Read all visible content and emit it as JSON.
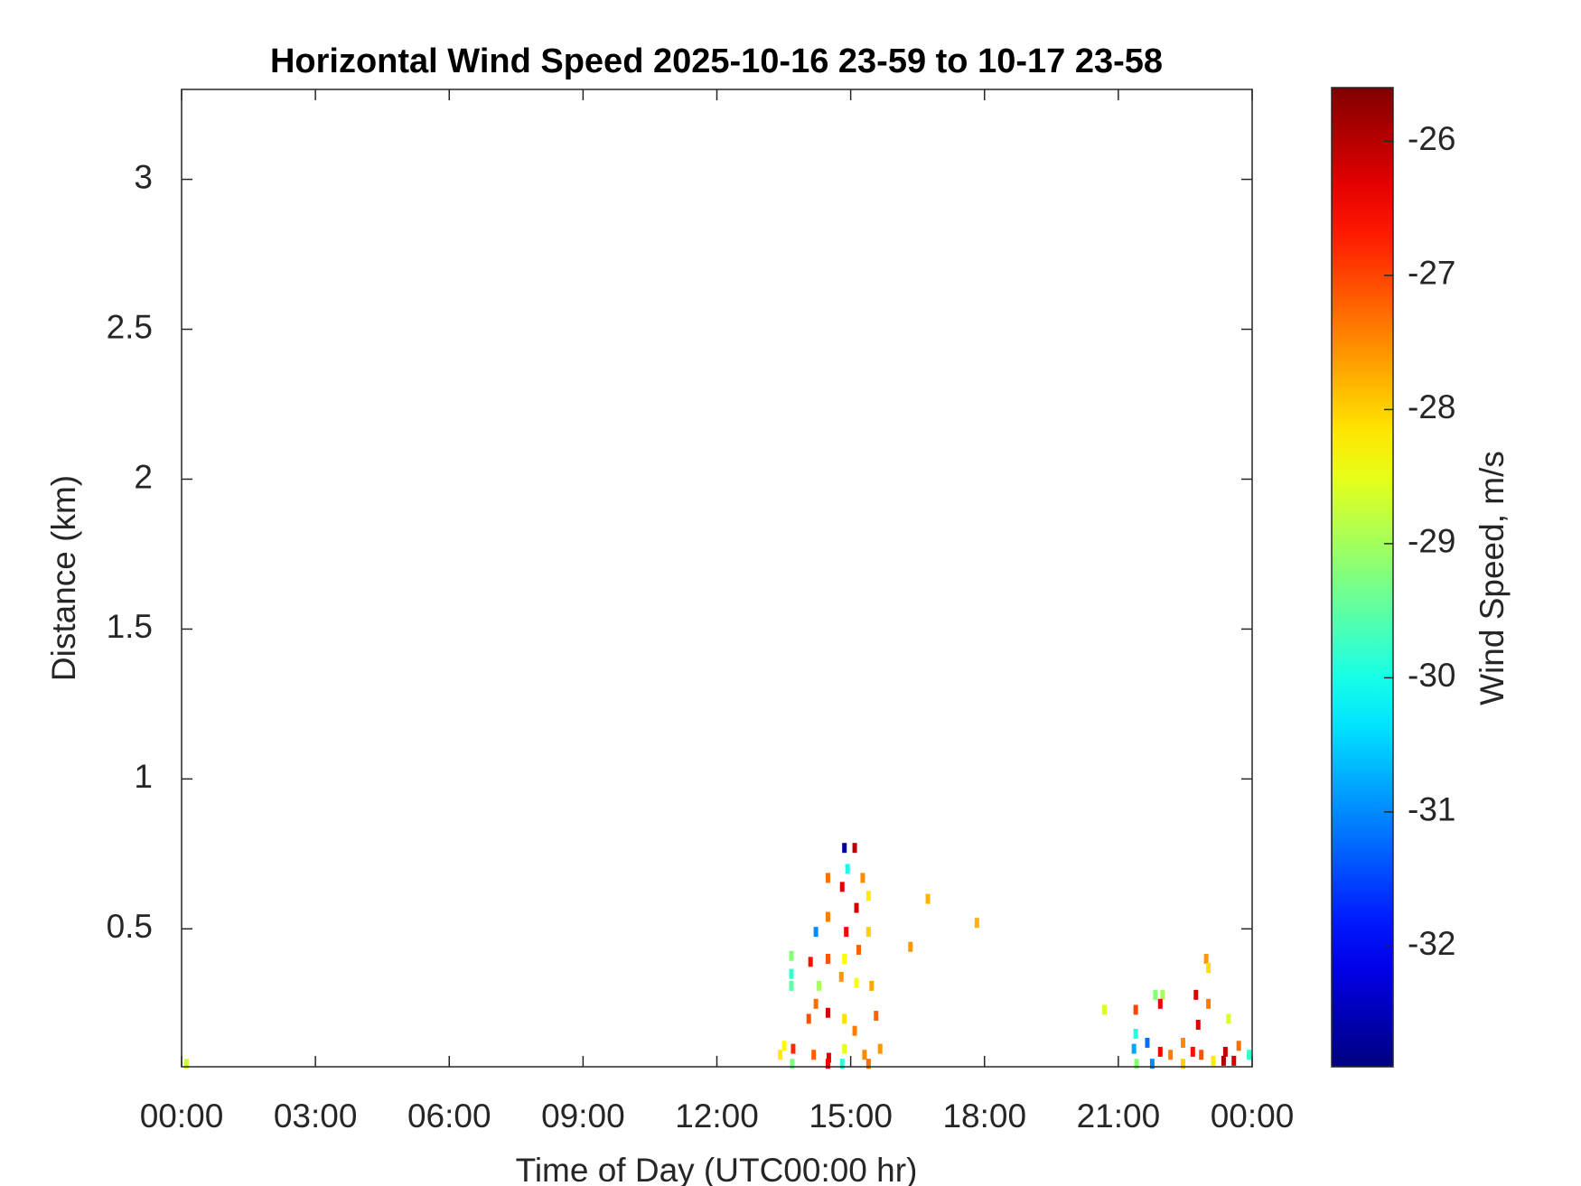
{
  "chart_data": {
    "type": "heatmap",
    "title": "Horizontal Wind Speed 2025-10-16 23-59 to 10-17 23-58",
    "xlabel": "Time of Day (UTC00:00 hr)",
    "ylabel": "Distance (km)",
    "colorbar_label": "Wind Speed, m/s",
    "colormap": "jet",
    "xlim": [
      0,
      24
    ],
    "xticks": [
      {
        "value": 0,
        "label": "00:00"
      },
      {
        "value": 3,
        "label": "03:00"
      },
      {
        "value": 6,
        "label": "06:00"
      },
      {
        "value": 9,
        "label": "09:00"
      },
      {
        "value": 12,
        "label": "12:00"
      },
      {
        "value": 15,
        "label": "15:00"
      },
      {
        "value": 18,
        "label": "18:00"
      },
      {
        "value": 21,
        "label": "21:00"
      },
      {
        "value": 24,
        "label": "00:00"
      }
    ],
    "ylim": [
      0.04,
      3.3
    ],
    "yticks": [
      0.5,
      1,
      1.5,
      2,
      2.5,
      3
    ],
    "clim": [
      -32.9,
      -25.6
    ],
    "cticks": [
      -26,
      -27,
      -28,
      -29,
      -30,
      -31,
      -32
    ],
    "x": [
      0.11,
      14.86,
      15.09,
      14.93,
      14.49,
      15.27,
      14.81,
      15.4,
      15.13,
      14.49,
      14.22,
      14.9,
      15.4,
      16.73,
      17.83,
      16.34,
      13.67,
      14.1,
      13.67,
      14.49,
      14.86,
      15.18,
      14.29,
      13.67,
      14.79,
      15.13,
      15.47,
      14.22,
      14.49,
      14.06,
      14.86,
      15.57,
      15.09,
      13.51,
      13.71,
      14.17,
      14.51,
      14.86,
      15.31,
      15.66,
      13.69,
      13.42,
      14.81,
      15.4,
      14.49,
      20.69,
      21.39,
      21.83,
      21.99,
      21.94,
      22.74,
      22.97,
      23.02,
      23.02,
      23.47,
      22.79,
      21.39,
      21.65,
      21.94,
      22.17,
      21.35,
      22.45,
      22.67,
      22.86,
      23.13,
      23.4,
      23.59,
      23.7,
      23.36,
      23.93,
      21.76,
      22.45,
      21.41
    ],
    "y": [
      0.05,
      0.77,
      0.77,
      0.7,
      0.67,
      0.67,
      0.64,
      0.61,
      0.57,
      0.54,
      0.49,
      0.49,
      0.49,
      0.6,
      0.52,
      0.44,
      0.41,
      0.39,
      0.35,
      0.4,
      0.4,
      0.43,
      0.31,
      0.31,
      0.34,
      0.32,
      0.31,
      0.25,
      0.22,
      0.2,
      0.2,
      0.21,
      0.16,
      0.11,
      0.1,
      0.08,
      0.07,
      0.1,
      0.08,
      0.1,
      0.05,
      0.08,
      0.05,
      0.05,
      0.05,
      0.23,
      0.23,
      0.28,
      0.28,
      0.25,
      0.28,
      0.4,
      0.37,
      0.25,
      0.2,
      0.18,
      0.15,
      0.12,
      0.09,
      0.08,
      0.1,
      0.12,
      0.09,
      0.08,
      0.06,
      0.09,
      0.06,
      0.11,
      0.06,
      0.08,
      0.05,
      0.05,
      0.05
    ],
    "values": [
      -28.7,
      -32.7,
      -26,
      -30,
      -27.3,
      -27.5,
      -26.3,
      -28.2,
      -26.2,
      -27.4,
      -31,
      -26.5,
      -28,
      -27.8,
      -27.8,
      -27.6,
      -29.2,
      -26.6,
      -29.8,
      -27.1,
      -28.3,
      -27.2,
      -29,
      -29.5,
      -27.6,
      -28.4,
      -27.7,
      -27.3,
      -26.2,
      -27.1,
      -28.1,
      -27.2,
      -27.4,
      -28.3,
      -26.8,
      -27.2,
      -26.3,
      -28.5,
      -27.5,
      -27.6,
      -29.3,
      -28.2,
      -29.9,
      -27.3,
      -26.5,
      -28.6,
      -27,
      -29.2,
      -29,
      -26.4,
      -26.3,
      -27.6,
      -28.1,
      -27.4,
      -28.6,
      -26.3,
      -29.9,
      -31.2,
      -26.5,
      -27.4,
      -30.8,
      -27.5,
      -26.6,
      -27.1,
      -28.2,
      -26.1,
      -26.2,
      -27.3,
      -25.9,
      -29.8,
      -31,
      -28,
      -29.2
    ]
  }
}
